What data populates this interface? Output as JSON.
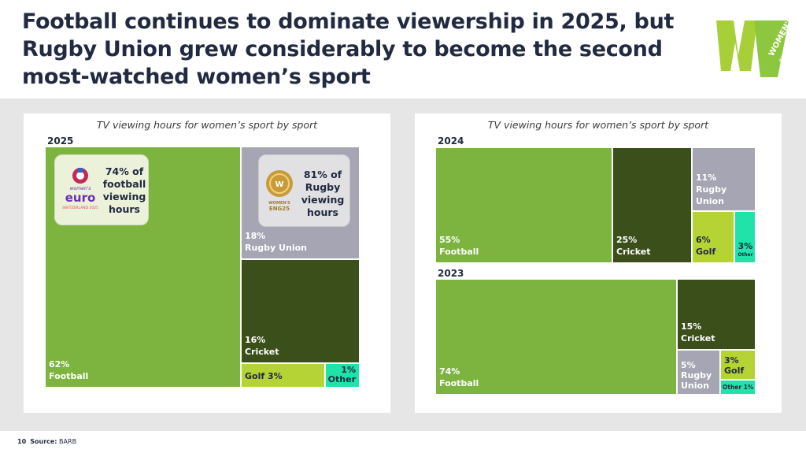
{
  "title": "Football continues to dominate viewership in 2025, but Rugby Union grew considerably to become the second most-watched women’s sport",
  "logo": {
    "brand_text": "WOMEN'S SPORT TRUST"
  },
  "footer": {
    "page_number": "10",
    "source_label": "Source:",
    "source_value": "BARB"
  },
  "colors": {
    "football": "#7db43f",
    "rugby": "#a5a5b3",
    "cricket": "#3a4f19",
    "golf": "#b5d334",
    "other": "#1fe3a8"
  },
  "chart_data": [
    {
      "type": "treemap",
      "title": "TV viewing hours for women’s sport by sport",
      "year": "2025",
      "categories": [
        "Football",
        "Rugby Union",
        "Cricket",
        "Golf",
        "Other"
      ],
      "values": [
        62,
        18,
        16,
        3,
        1
      ],
      "labels": {
        "football": {
          "pct": "62%",
          "name": "Football"
        },
        "rugby": {
          "pct": "18%",
          "name": "Rugby Union"
        },
        "cricket": {
          "pct": "16%",
          "name": "Cricket"
        },
        "golf": {
          "text": "Golf 3%"
        },
        "other": {
          "pct": "1%",
          "name": "Other"
        }
      },
      "annotations": [
        {
          "logo_text": "Women's EURO · SWITZERLAND 2025",
          "text": "74% of football viewing hours"
        },
        {
          "logo_text": "WOMEN'S RWC · ENG25",
          "text": "81% of Rugby viewing hours"
        }
      ]
    },
    {
      "type": "treemap",
      "title": "TV viewing hours for women’s sport by sport",
      "year": "2024",
      "categories": [
        "Football",
        "Cricket",
        "Rugby Union",
        "Golf",
        "Other"
      ],
      "values": [
        55,
        25,
        11,
        6,
        3
      ],
      "labels": {
        "football": {
          "pct": "55%",
          "name": "Football"
        },
        "cricket": {
          "pct": "25%",
          "name": "Cricket"
        },
        "rugby": {
          "pct": "11%",
          "name1": "Rugby",
          "name2": "Union"
        },
        "golf": {
          "pct": "6%",
          "name": "Golf"
        },
        "other": {
          "pct": "3%",
          "name": "Other"
        }
      }
    },
    {
      "type": "treemap",
      "year": "2023",
      "categories": [
        "Football",
        "Cricket",
        "Rugby Union",
        "Golf",
        "Other"
      ],
      "values": [
        74,
        15,
        5,
        3,
        1
      ],
      "labels": {
        "football": {
          "pct": "74%",
          "name": "Football"
        },
        "cricket": {
          "pct": "15%",
          "name": "Cricket"
        },
        "rugby": {
          "pct": "5%",
          "name1": "Rugby",
          "name2": "Union"
        },
        "golf": {
          "pct": "3%",
          "name": "Golf"
        },
        "other": {
          "text": "Other 1%"
        }
      }
    }
  ]
}
